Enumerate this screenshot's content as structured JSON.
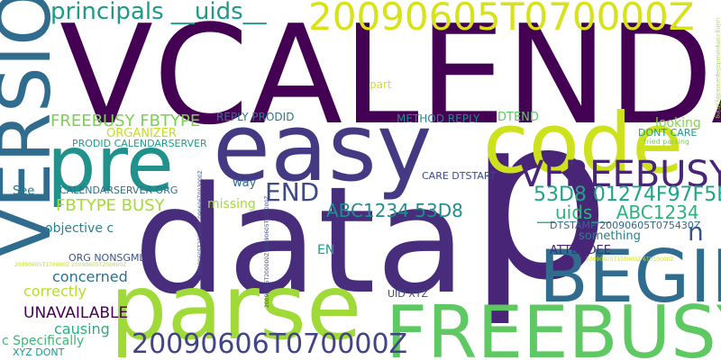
{
  "words": [
    {
      "text": "VCALENDAR",
      "color": "#440154"
    },
    {
      "text": "p",
      "color": "#482576"
    },
    {
      "text": "data",
      "color": "#472d7b"
    },
    {
      "text": "easy",
      "color": "#443983"
    },
    {
      "text": "parse",
      "color": "#a0da39"
    },
    {
      "text": "VERSION",
      "color": "#2f6c8e"
    },
    {
      "text": "code",
      "color": "#cde11d"
    },
    {
      "text": "pre",
      "color": "#21918c"
    },
    {
      "text": "FREEBUSY",
      "color": "#5ec962"
    },
    {
      "text": "BEGIN",
      "color": "#2f6c8e"
    },
    {
      "text": "VFREEBUSY",
      "color": "#482576"
    },
    {
      "text": "20090605T070000Z",
      "color": "#d8e219"
    },
    {
      "text": "20090606T070000Z",
      "color": "#414487"
    },
    {
      "text": "principals __uids__",
      "color": "#1f9a8a"
    },
    {
      "text": "END",
      "color": "#3e4989"
    },
    {
      "text": "53D8 01274F97F5E1",
      "color": "#20a486"
    },
    {
      "text": "ABC1234 53D8",
      "color": "#228c8d"
    },
    {
      "text": "__uids__ ABC1234",
      "color": "#2db27d"
    },
    {
      "text": "FREEBUSY FBTYPE",
      "color": "#7ad151"
    },
    {
      "text": "FBTYPE BUSY",
      "color": "#a5db36"
    },
    {
      "text": "n",
      "color": "#3b528b"
    },
    {
      "text": "UNAVAILABLE",
      "color": "#440154"
    },
    {
      "text": "correctly",
      "color": "#b5de2b"
    },
    {
      "text": "concerned",
      "color": "#2c728e"
    },
    {
      "text": "causing",
      "color": "#29af7f"
    },
    {
      "text": "c Specifically",
      "color": "#3aba76"
    },
    {
      "text": "objective c",
      "color": "#26828e"
    },
    {
      "text": "missing",
      "color": "#a5db36"
    },
    {
      "text": "See",
      "color": "#2a788e"
    },
    {
      "text": "way",
      "color": "#31688e"
    },
    {
      "text": "REPLY PRODID",
      "color": "#2a788e"
    },
    {
      "text": "ORGANIZER",
      "color": "#c2df23"
    },
    {
      "text": "PRODID CALENDARSERVER",
      "color": "#1f9e89"
    },
    {
      "text": "CALENDARSERVER ORG",
      "color": "#2e6f8e"
    },
    {
      "text": "ORG NONSGML",
      "color": "#3a548c"
    },
    {
      "text": "METHOD REPLY",
      "color": "#23898e"
    },
    {
      "text": "DTEND",
      "color": "#5ec962"
    },
    {
      "text": "looking",
      "color": "#84d44b"
    },
    {
      "text": "DONT CARE",
      "color": "#1e9b8a"
    },
    {
      "text": "CARE DTSTART",
      "color": "#3e4989"
    },
    {
      "text": "DTSTAMP 20090605T075430Z",
      "color": "#31688e"
    },
    {
      "text": "ATTENDEE",
      "color": "#482878"
    },
    {
      "text": "something",
      "color": "#277f8e"
    },
    {
      "text": "EN",
      "color": "#1f9e89"
    },
    {
      "text": "UID XYZ",
      "color": "#404688"
    },
    {
      "text": "XYZ DONT",
      "color": "#1f9a8a"
    },
    {
      "text": "part",
      "color": "#d2e21b"
    },
    {
      "text": "tried parsing",
      "color": "#7ad151"
    },
    {
      "text": "20090605T170000Z 20090605T200000Z",
      "color": "#bddf26"
    },
    {
      "text": "20090605T150000Z 6T010000Z",
      "color": "#cde11d"
    },
    {
      "text": "using componentsSeparatedByString",
      "color": "#a0da39"
    },
    {
      "text": "20090605T223000Z 090606T003000Z",
      "color": "#3b528b"
    },
    {
      "text": "20090605T200000Z 20090605T223000Z",
      "color": "#3e4a89"
    }
  ]
}
